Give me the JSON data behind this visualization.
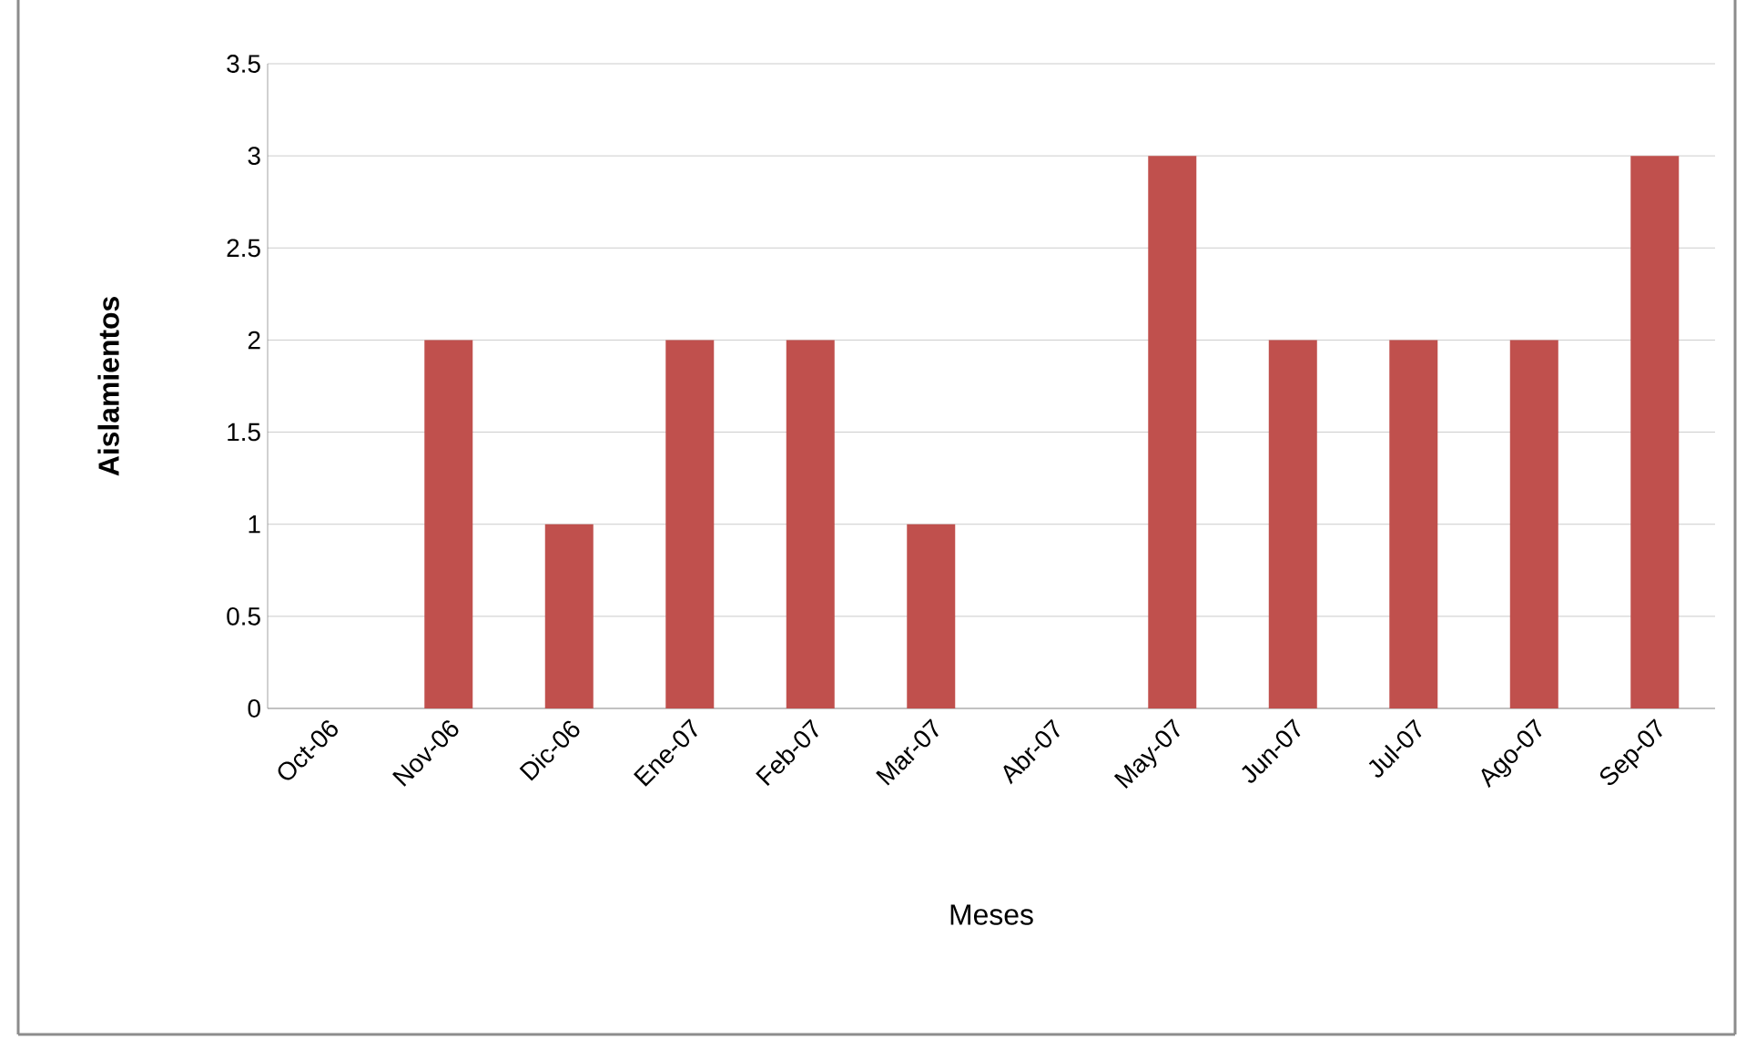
{
  "chart_data": {
    "type": "bar",
    "xlabel": "Meses",
    "ylabel": "Aislamientos",
    "categories": [
      "Oct-06",
      "Nov-06",
      "Dic-06",
      "Ene-07",
      "Feb-07",
      "Mar-07",
      "Abr-07",
      "May-07",
      "Jun-07",
      "Jul-07",
      "Ago-07",
      "Sep-07"
    ],
    "values": [
      0,
      2,
      1,
      2,
      2,
      1,
      0,
      3,
      2,
      2,
      2,
      3
    ],
    "color": "#c0504d",
    "ylim": [
      0,
      3.5
    ],
    "yticks": [
      0,
      0.5,
      1,
      1.5,
      2,
      2.5,
      3,
      3.5
    ],
    "grid": "y"
  }
}
